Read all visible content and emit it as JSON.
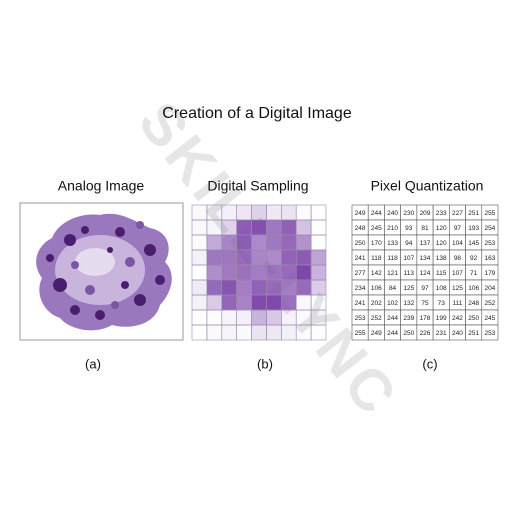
{
  "watermark": "SKILL-LYNC",
  "title": "Creation of a Digital Image",
  "panels": [
    {
      "title": "Analog Image",
      "label": "(a)"
    },
    {
      "title": "Digital Sampling",
      "label": "(b)"
    },
    {
      "title": "Pixel Quantization",
      "label": "(c)"
    }
  ],
  "grid": [
    [
      249,
      244,
      240,
      230,
      209,
      233,
      227,
      251,
      255
    ],
    [
      248,
      245,
      210,
      93,
      81,
      120,
      97,
      193,
      254
    ],
    [
      250,
      170,
      133,
      94,
      137,
      120,
      104,
      145,
      253
    ],
    [
      241,
      118,
      118,
      107,
      134,
      138,
      98,
      92,
      163
    ],
    [
      277,
      142,
      121,
      113,
      124,
      115,
      107,
      71,
      179
    ],
    [
      234,
      106,
      84,
      125,
      97,
      108,
      125,
      106,
      204
    ],
    [
      241,
      202,
      102,
      132,
      75,
      73,
      111,
      248,
      252
    ],
    [
      253,
      252,
      244,
      239,
      178,
      199,
      242,
      250,
      245
    ],
    [
      255,
      249,
      244,
      250,
      226,
      231,
      240,
      251,
      253
    ]
  ]
}
